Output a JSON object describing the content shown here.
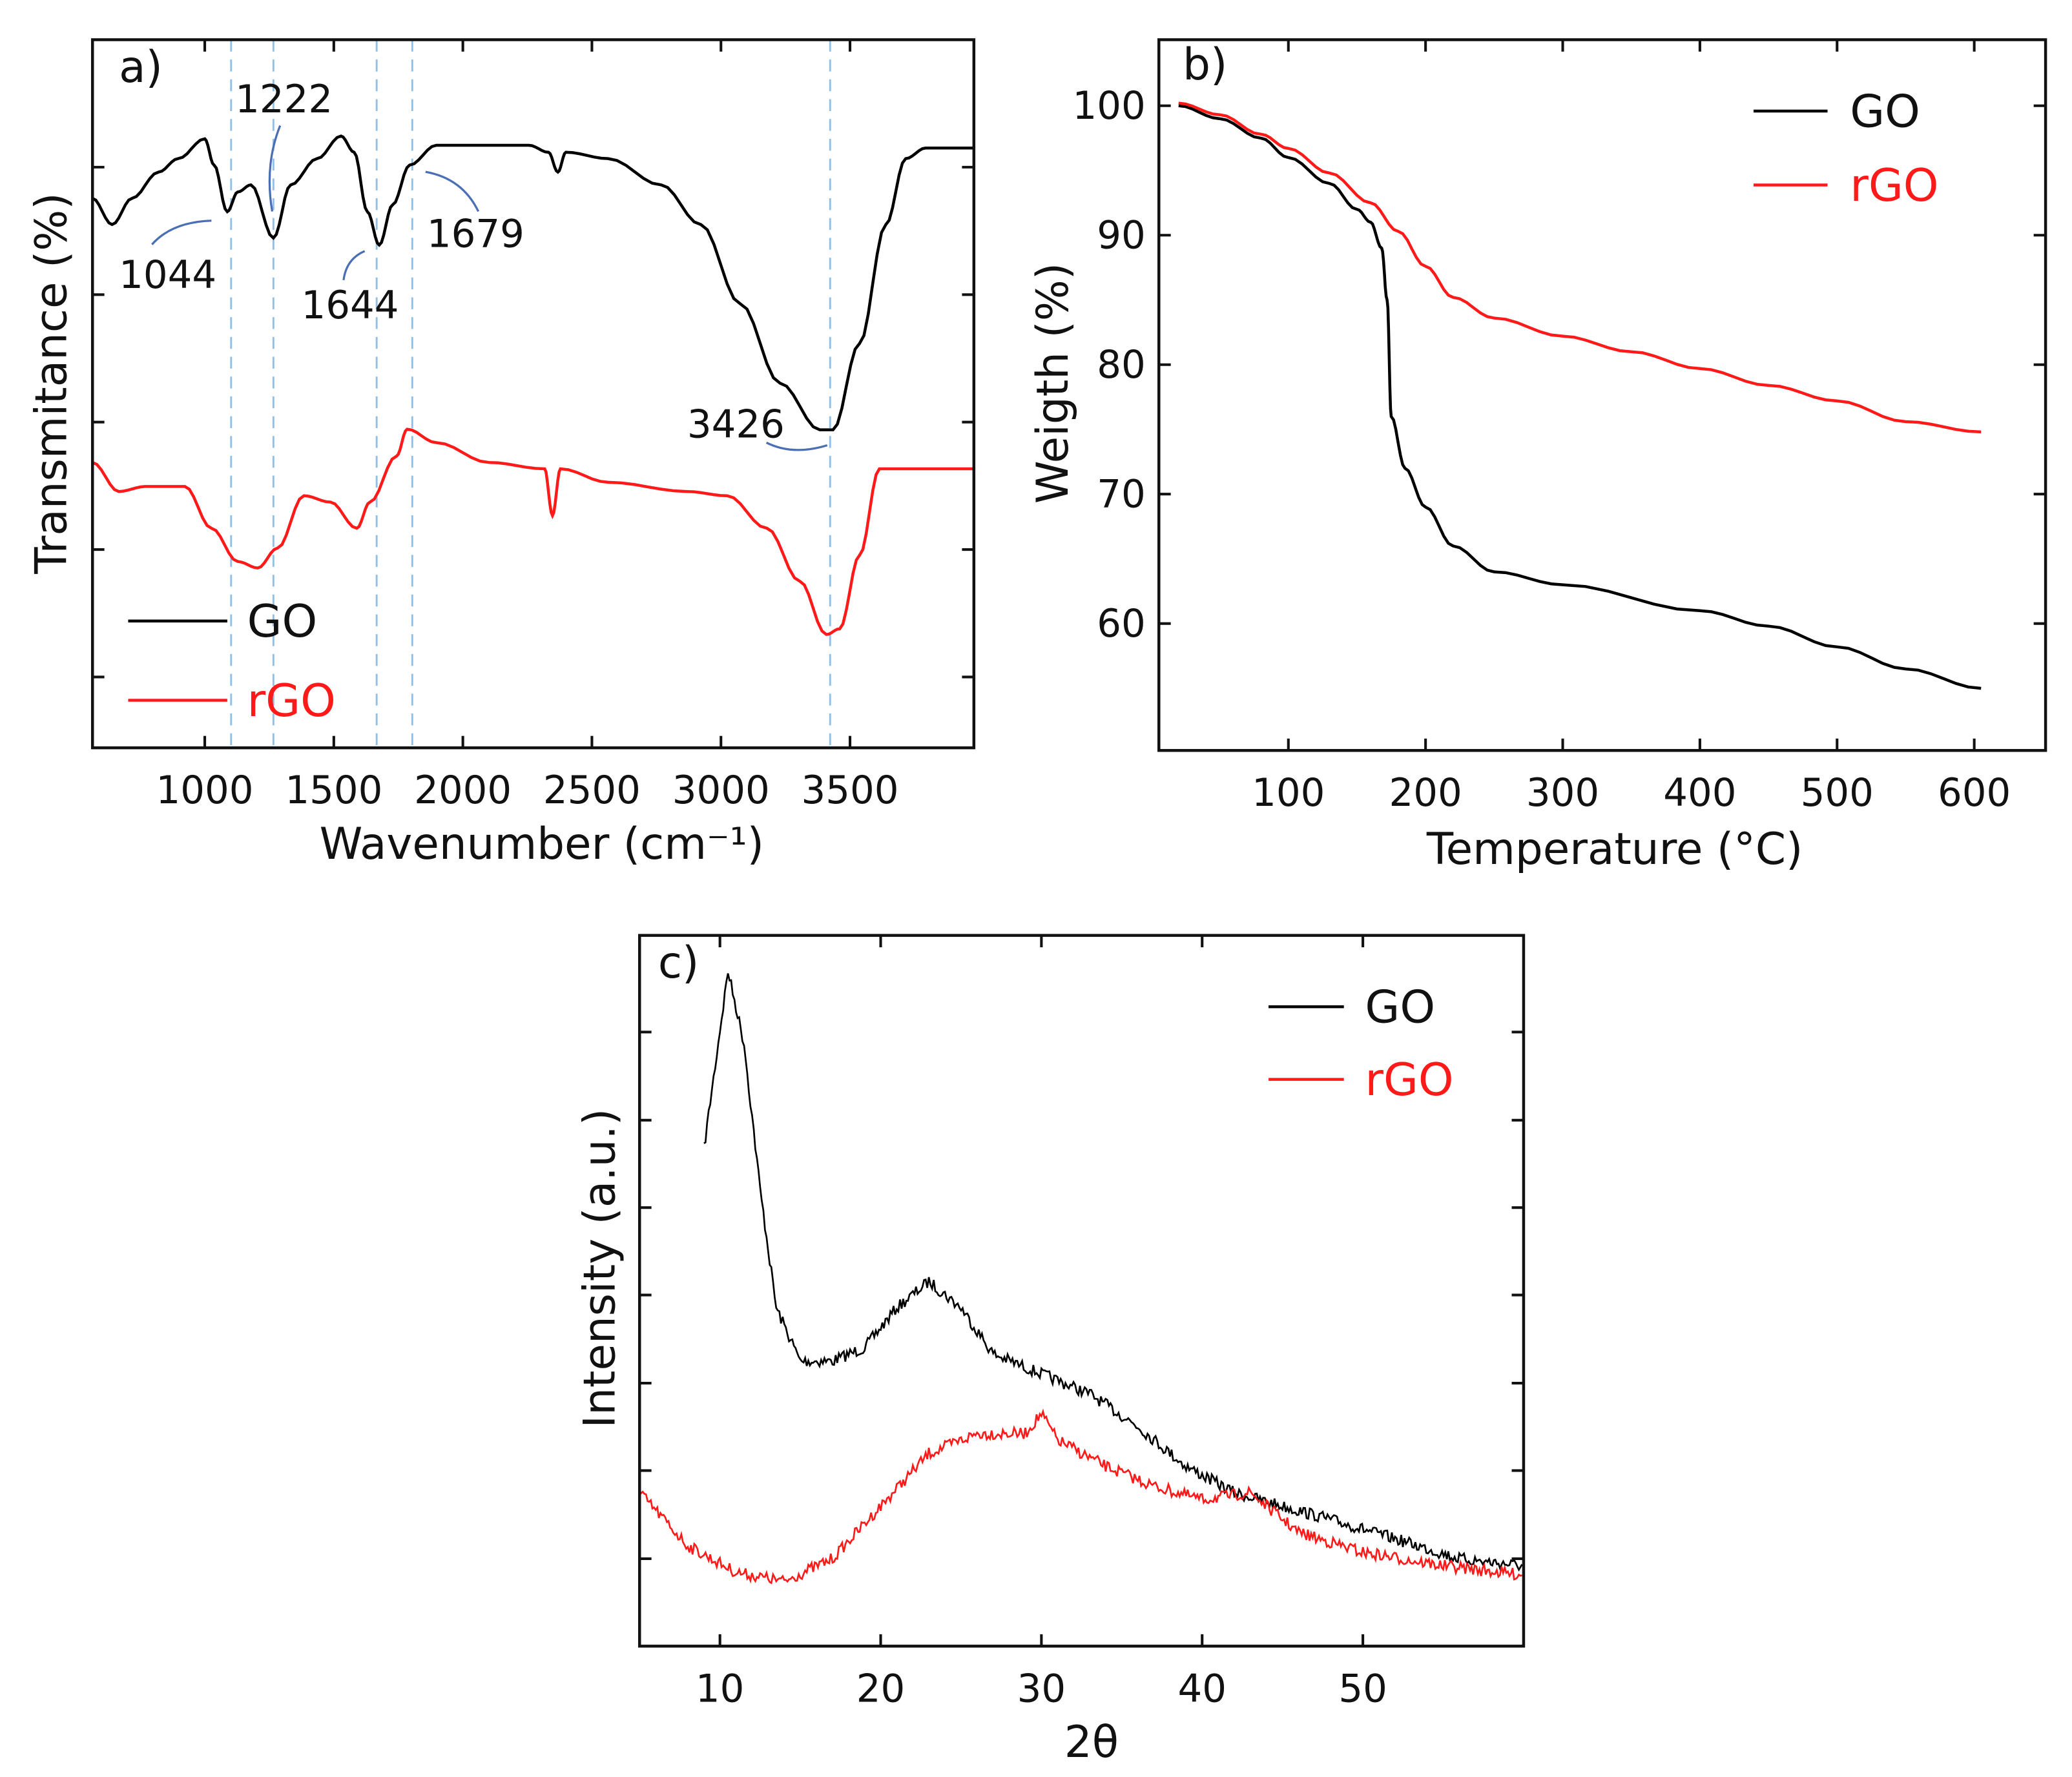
{
  "chart_data": [
    {
      "id": "a",
      "type": "line",
      "panel_label": "a)",
      "xlabel": "Wavenumber (cm⁻¹)",
      "ylabel": "Transmitance (%)",
      "xlim": [
        565,
        3980
      ],
      "ylim": [
        0,
        100
      ],
      "xticks": [
        1000,
        1500,
        2000,
        2500,
        3000,
        3500
      ],
      "yticks_unlabeled": [
        10,
        28,
        46,
        64,
        82
      ],
      "legend": {
        "placement": "bottom-left",
        "entries": [
          "GO",
          "rGO"
        ]
      },
      "annotations": [
        {
          "text": "1044",
          "x": 1044
        },
        {
          "text": "1222",
          "x": 1222
        },
        {
          "text": "1644",
          "x": 1644
        },
        {
          "text": "1679",
          "x": 1679
        },
        {
          "text": "3426",
          "x": 3426
        }
      ],
      "reference_lines": [
        1102,
        1266,
        1666,
        1804,
        3423
      ],
      "series": [
        {
          "name": "GO",
          "color": "#000000",
          "points": [
            [
              565,
              77.6
            ],
            [
              641,
              73.9
            ],
            [
              718,
              77.6
            ],
            [
              821,
              81.3
            ],
            [
              897,
              83.2
            ],
            [
              1000,
              86
            ],
            [
              1036,
              82.3
            ],
            [
              1087,
              75.7
            ],
            [
              1128,
              78.5
            ],
            [
              1179,
              79.5
            ],
            [
              1266,
              72
            ],
            [
              1333,
              79.5
            ],
            [
              1435,
              83.2
            ],
            [
              1528,
              86.4
            ],
            [
              1579,
              84.1
            ],
            [
              1630,
              75.7
            ],
            [
              1676,
              71
            ],
            [
              1728,
              76.7
            ],
            [
              1794,
              82.3
            ],
            [
              1897,
              85.1
            ],
            [
              2255,
              85.1
            ],
            [
              2332,
              84.1
            ],
            [
              2368,
              81.3
            ],
            [
              2399,
              84.1
            ],
            [
              2563,
              83.2
            ],
            [
              2768,
              79.5
            ],
            [
              2922,
              73.9
            ],
            [
              3075,
              62.7
            ],
            [
              3229,
              51.5
            ],
            [
              3383,
              44.9
            ],
            [
              3434,
              44.9
            ],
            [
              3537,
              57.1
            ],
            [
              3639,
              73.9
            ],
            [
              3716,
              83.2
            ],
            [
              3793,
              84.7
            ],
            [
              3982,
              84.7
            ]
          ]
        },
        {
          "name": "rGO",
          "color": "#ff1a1a",
          "points": [
            [
              565,
              40.3
            ],
            [
              667,
              36.2
            ],
            [
              769,
              36.9
            ],
            [
              923,
              36.9
            ],
            [
              1026,
              31
            ],
            [
              1128,
              26.3
            ],
            [
              1205,
              25.4
            ],
            [
              1282,
              28.2
            ],
            [
              1384,
              35.6
            ],
            [
              1487,
              34.7
            ],
            [
              1589,
              31
            ],
            [
              1640,
              34.7
            ],
            [
              1743,
              41.2
            ],
            [
              1784,
              45
            ],
            [
              1897,
              43.1
            ],
            [
              2101,
              40.3
            ],
            [
              2317,
              39.4
            ],
            [
              2347,
              32.8
            ],
            [
              2378,
              39.4
            ],
            [
              2563,
              37.5
            ],
            [
              2870,
              36.2
            ],
            [
              3024,
              35.6
            ],
            [
              3178,
              31
            ],
            [
              3306,
              23.5
            ],
            [
              3408,
              16
            ],
            [
              3460,
              16.8
            ],
            [
              3537,
              27.2
            ],
            [
              3614,
              39.4
            ],
            [
              3793,
              39.4
            ],
            [
              3982,
              39.4
            ]
          ]
        }
      ]
    },
    {
      "id": "b",
      "type": "line",
      "panel_label": "b)",
      "xlabel": "Temperature (°C)",
      "ylabel": "Weigth (%)",
      "xlim": [
        5.6,
        652
      ],
      "ylim": [
        50.2,
        105.1
      ],
      "xticks": [
        100,
        200,
        300,
        400,
        500,
        600
      ],
      "yticks": [
        60,
        70,
        80,
        90,
        100
      ],
      "legend": {
        "placement": "top-right",
        "entries": [
          "GO",
          "rGO"
        ]
      },
      "series": [
        {
          "name": "GO",
          "color": "#000000",
          "points": [
            [
              20,
              100
            ],
            [
              50,
              99
            ],
            [
              80,
              97.5
            ],
            [
              100,
              96
            ],
            [
              130,
              94
            ],
            [
              150,
              92
            ],
            [
              160,
              91
            ],
            [
              168,
              89
            ],
            [
              172,
              85
            ],
            [
              175,
              76
            ],
            [
              185,
              72
            ],
            [
              200,
              69
            ],
            [
              220,
              66
            ],
            [
              250,
              64
            ],
            [
              300,
              63
            ],
            [
              400,
              61
            ],
            [
              450,
              59.8
            ],
            [
              500,
              58.2
            ],
            [
              550,
              56.5
            ],
            [
              605,
              55
            ]
          ]
        },
        {
          "name": "rGO",
          "color": "#ff1a1a",
          "points": [
            [
              20,
              100.2
            ],
            [
              50,
              99.3
            ],
            [
              80,
              97.8
            ],
            [
              100,
              96.7
            ],
            [
              130,
              94.8
            ],
            [
              160,
              92.5
            ],
            [
              180,
              90.3
            ],
            [
              200,
              87.6
            ],
            [
              220,
              85.2
            ],
            [
              250,
              83.6
            ],
            [
              300,
              82.2
            ],
            [
              350,
              81
            ],
            [
              400,
              79.7
            ],
            [
              450,
              78.4
            ],
            [
              500,
              77.2
            ],
            [
              550,
              75.6
            ],
            [
              605,
              74.8
            ]
          ]
        }
      ]
    },
    {
      "id": "c",
      "type": "line",
      "panel_label": "c)",
      "xlabel": "2θ",
      "ylabel": "Intensity (a.u.)",
      "xlim": [
        5,
        60
      ],
      "ylim": [
        0,
        100
      ],
      "xticks": [
        10,
        20,
        30,
        40,
        50
      ],
      "yticks_unlabeled": [
        12.3,
        24.7,
        37,
        49.4,
        61.7,
        74,
        86.4
      ],
      "legend": {
        "placement": "top-right",
        "entries": [
          "GO",
          "rGO"
        ]
      },
      "series": [
        {
          "name": "GO",
          "color": "#000000",
          "points": [
            [
              9,
              69.9
            ],
            [
              10.5,
              95
            ],
            [
              11.5,
              84.8
            ],
            [
              12.5,
              64.3
            ],
            [
              13.5,
              47.6
            ],
            [
              15,
              40.1
            ],
            [
              17,
              40.1
            ],
            [
              19,
              42
            ],
            [
              21,
              47.6
            ],
            [
              23,
              51.3
            ],
            [
              25,
              47.6
            ],
            [
              27,
              41.1
            ],
            [
              30,
              38.3
            ],
            [
              33,
              35.5
            ],
            [
              36,
              30.9
            ],
            [
              39,
              25.3
            ],
            [
              42,
              21.6
            ],
            [
              45,
              19.7
            ],
            [
              48,
              17.8
            ],
            [
              52,
              15.1
            ],
            [
              56,
              12.3
            ],
            [
              60,
              11.3
            ]
          ]
        },
        {
          "name": "rGO",
          "color": "#ff1a1a",
          "points": [
            [
              5,
              21.6
            ],
            [
              8,
              14.1
            ],
            [
              11,
              10.4
            ],
            [
              14,
              9.1
            ],
            [
              17,
              12.3
            ],
            [
              20,
              19.7
            ],
            [
              23,
              27.1
            ],
            [
              26,
              29.9
            ],
            [
              29,
              29.9
            ],
            [
              30,
              32.7
            ],
            [
              31,
              29
            ],
            [
              34,
              25.3
            ],
            [
              37,
              22.5
            ],
            [
              40,
              20.6
            ],
            [
              43,
              21.6
            ],
            [
              46,
              16
            ],
            [
              50,
              13.2
            ],
            [
              55,
              11.3
            ],
            [
              60,
              10
            ]
          ]
        }
      ]
    }
  ]
}
